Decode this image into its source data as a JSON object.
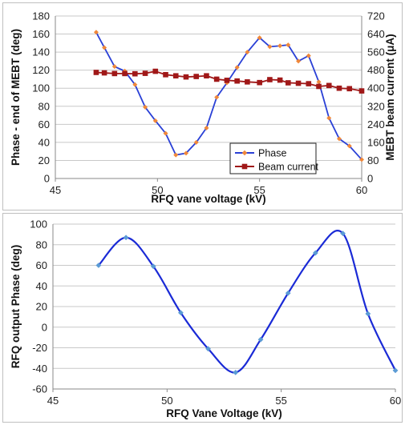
{
  "chart_data": [
    {
      "type": "line",
      "xlabel": "RFQ vane voltage (kV)",
      "ylabel": "Phase - end of MEBT (deg)",
      "y2label": "MEBT beam current (μA)",
      "xlim": [
        45,
        60
      ],
      "ylim": [
        0,
        180
      ],
      "y2lim": [
        0,
        720
      ],
      "xticks": [
        45,
        50,
        55,
        60
      ],
      "yticks": [
        0,
        20,
        40,
        60,
        80,
        100,
        120,
        140,
        160,
        180
      ],
      "y2ticks": [
        0,
        80,
        160,
        240,
        320,
        400,
        480,
        560,
        640,
        720
      ],
      "grid": "horizontal",
      "legend": "bottom-right",
      "series": [
        {
          "name": "Phase",
          "axis": "left",
          "color": "#2a40d6",
          "marker_color": "#f0883a",
          "x": [
            47.0,
            47.4,
            47.9,
            48.4,
            48.9,
            49.4,
            49.9,
            50.4,
            50.9,
            51.4,
            51.9,
            52.4,
            52.9,
            53.4,
            53.9,
            54.4,
            55.0,
            55.5,
            56.0,
            56.4,
            56.9,
            57.4,
            57.9,
            58.4,
            58.9,
            59.4,
            60.0
          ],
          "y": [
            162,
            145,
            124,
            119,
            104,
            79,
            64,
            50,
            26,
            28,
            40,
            56,
            90,
            106,
            123,
            140,
            156,
            146,
            147,
            148,
            130,
            136,
            107,
            67,
            44,
            36,
            21
          ]
        },
        {
          "name": "Beam current",
          "axis": "right",
          "color": "#a01818",
          "marker_color": "#a01818",
          "x": [
            47.0,
            47.4,
            47.9,
            48.4,
            48.9,
            49.4,
            49.9,
            50.4,
            50.9,
            51.4,
            51.9,
            52.4,
            52.9,
            53.4,
            53.9,
            54.4,
            55.0,
            55.5,
            56.0,
            56.4,
            56.9,
            57.4,
            57.9,
            58.4,
            58.9,
            59.4,
            60.0
          ],
          "y": [
            470,
            468,
            465,
            465,
            464,
            466,
            475,
            460,
            455,
            450,
            452,
            455,
            440,
            435,
            432,
            428,
            425,
            438,
            436,
            424,
            422,
            420,
            408,
            412,
            400,
            398,
            388
          ]
        }
      ]
    },
    {
      "type": "line",
      "xlabel": "RFQ Vane Voltage (kV)",
      "ylabel": "RFQ output Phase (deg)",
      "xlim": [
        45,
        60
      ],
      "ylim": [
        -60,
        100
      ],
      "xticks": [
        45,
        50,
        55,
        60
      ],
      "yticks": [
        -60,
        -40,
        -20,
        0,
        20,
        40,
        60,
        80,
        100
      ],
      "grid": "horizontal",
      "series": [
        {
          "color": "#1a2ad6",
          "marker_color": "#5b9bd5",
          "x": [
            47.0,
            48.2,
            49.4,
            50.6,
            51.8,
            53.0,
            54.1,
            55.3,
            56.5,
            57.7,
            58.8,
            60.0
          ],
          "y": [
            60,
            87,
            59,
            14,
            -21,
            -44,
            -12,
            33,
            72,
            91,
            13,
            -42
          ]
        }
      ]
    }
  ]
}
